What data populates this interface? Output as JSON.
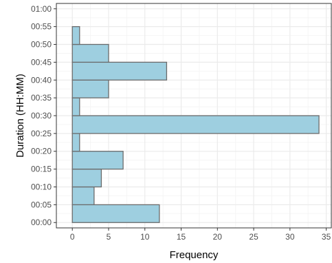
{
  "chart_data": {
    "type": "bar",
    "orientation": "horizontal",
    "xlabel": "Frequency",
    "ylabel": "Duration (HH:MM)",
    "xlim": [
      -2.2,
      35.7
    ],
    "ylim": [
      0,
      60
    ],
    "x_ticks": [
      0,
      5,
      10,
      15,
      20,
      25,
      30,
      35
    ],
    "y_tick_labels": [
      "00:00",
      "00:05",
      "00:10",
      "00:15",
      "00:20",
      "00:25",
      "00:30",
      "00:35",
      "00:40",
      "00:45",
      "00:50",
      "00:55",
      "01:00"
    ],
    "bin_width_minutes": 5,
    "bins": [
      {
        "start_minutes": 0,
        "end_minutes": 5,
        "count": 12
      },
      {
        "start_minutes": 5,
        "end_minutes": 10,
        "count": 3
      },
      {
        "start_minutes": 10,
        "end_minutes": 15,
        "count": 4
      },
      {
        "start_minutes": 15,
        "end_minutes": 20,
        "count": 7
      },
      {
        "start_minutes": 20,
        "end_minutes": 25,
        "count": 1
      },
      {
        "start_minutes": 25,
        "end_minutes": 30,
        "count": 34
      },
      {
        "start_minutes": 30,
        "end_minutes": 35,
        "count": 1
      },
      {
        "start_minutes": 35,
        "end_minutes": 40,
        "count": 5
      },
      {
        "start_minutes": 40,
        "end_minutes": 45,
        "count": 13
      },
      {
        "start_minutes": 45,
        "end_minutes": 50,
        "count": 5
      },
      {
        "start_minutes": 50,
        "end_minutes": 55,
        "count": 1
      }
    ],
    "grid": true,
    "colors": {
      "bar_fill": "#9ecfe0",
      "bar_stroke": "#6b6b6b",
      "grid_major": "#ebebeb",
      "grid_minor": "#f5f5f5",
      "panel_border": "#333333"
    }
  }
}
